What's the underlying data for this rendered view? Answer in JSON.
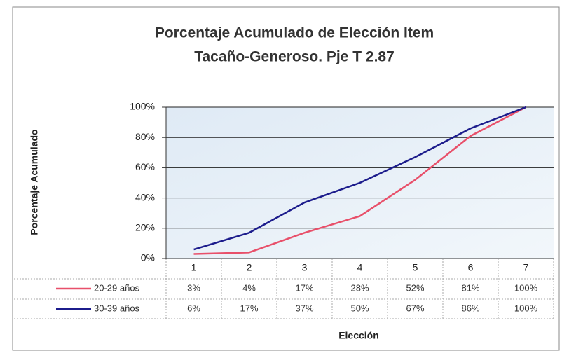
{
  "chart_data": {
    "type": "line",
    "title": [
      "Porcentaje Acumulado de Elección Item",
      "Tacaño-Generoso. Pje T 2.87"
    ],
    "x_label": "Elección",
    "y_label": "Porcentaje Acumulado",
    "categories": [
      "1",
      "2",
      "3",
      "4",
      "5",
      "6",
      "7"
    ],
    "series": [
      {
        "name": "20-29 años",
        "color": "#e8506a",
        "values": [
          3,
          4,
          17,
          28,
          52,
          81,
          100
        ],
        "value_labels": [
          "3%",
          "4%",
          "17%",
          "28%",
          "52%",
          "81%",
          "100%"
        ]
      },
      {
        "name": "30-39 años",
        "color": "#1c1c8c",
        "values": [
          6,
          17,
          37,
          50,
          67,
          86,
          100
        ],
        "value_labels": [
          "6%",
          "17%",
          "37%",
          "50%",
          "67%",
          "86%",
          "100%"
        ]
      }
    ],
    "ylim": [
      0,
      100
    ],
    "yticks": [
      {
        "value": 0,
        "label": "0%"
      },
      {
        "value": 20,
        "label": "20%"
      },
      {
        "value": 40,
        "label": "40%"
      },
      {
        "value": 60,
        "label": "60%"
      },
      {
        "value": 80,
        "label": "80%"
      },
      {
        "value": 100,
        "label": "100%"
      }
    ],
    "grid": true
  }
}
